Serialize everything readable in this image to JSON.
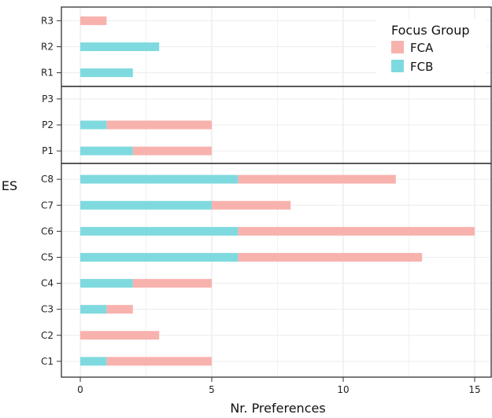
{
  "chart_data": {
    "type": "bar",
    "orientation": "horizontal",
    "stacked": true,
    "xlabel": "Nr. Preferences",
    "ylabel": "ES",
    "xlim": [
      0,
      15.6
    ],
    "xticks": [
      0,
      5,
      10,
      15
    ],
    "grid": true,
    "legend": {
      "title": "Focus Group",
      "position": "top-right"
    },
    "panels": [
      {
        "categories": [
          "R1",
          "R2",
          "R3"
        ]
      },
      {
        "categories": [
          "P1",
          "P2",
          "P3"
        ]
      },
      {
        "categories": [
          "C1",
          "C2",
          "C3",
          "C4",
          "C5",
          "C6",
          "C7",
          "C8"
        ]
      }
    ],
    "series": [
      {
        "name": "FCB",
        "color": "#7fdadf",
        "values": {
          "R1": 2,
          "R2": 3,
          "R3": 0,
          "P1": 2,
          "P2": 1,
          "P3": 0,
          "C1": 1,
          "C2": 0,
          "C3": 1,
          "C4": 2,
          "C5": 6,
          "C6": 6,
          "C7": 5,
          "C8": 6
        }
      },
      {
        "name": "FCA",
        "color": "#f8b2ae",
        "values": {
          "R1": 0,
          "R2": 0,
          "R3": 1,
          "P1": 3,
          "P2": 4,
          "P3": 0,
          "C1": 4,
          "C2": 3,
          "C3": 1,
          "C4": 3,
          "C5": 7,
          "C6": 9,
          "C7": 3,
          "C8": 6
        }
      }
    ]
  }
}
